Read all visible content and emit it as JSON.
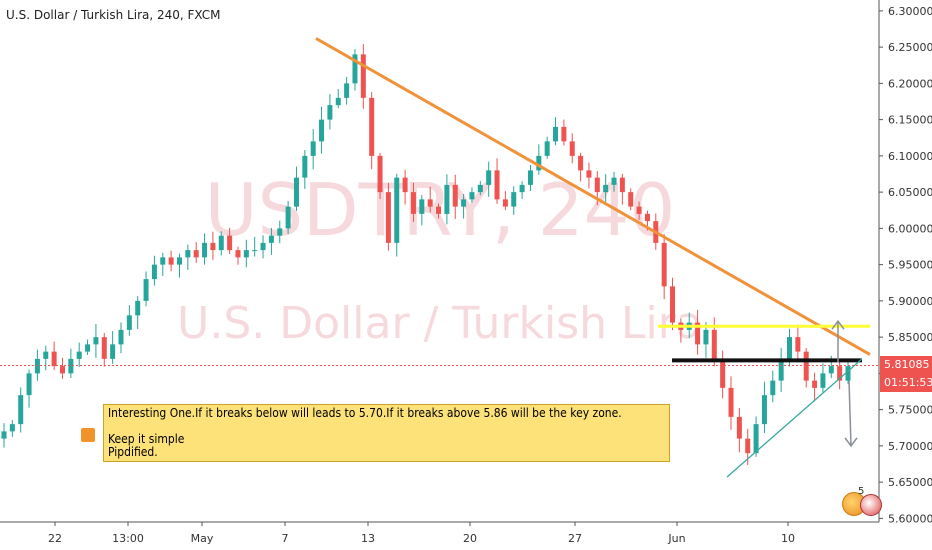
{
  "title": "U.S. Dollar / Turkish Lira, 240, FXCM",
  "watermark": {
    "line1": "USDTRY, 240",
    "line2": "U.S. Dollar / Turkish Lira"
  },
  "note": {
    "line1": "Interesting One.If it breaks below will leads to 5.70.If it breaks above 5.86 will be the key zone.",
    "line2": "Keep it simple",
    "line3": "Pipdified."
  },
  "price_tag": "5.81085",
  "timer_tag": "01:51:53",
  "badge_count": "5",
  "chart_data": {
    "type": "candlestick",
    "y_ticks": [
      "6.30000",
      "6.25000",
      "6.20000",
      "6.15000",
      "6.10000",
      "6.05000",
      "6.00000",
      "5.95000",
      "5.90000",
      "5.85000",
      "5.80000",
      "5.75000",
      "5.70000",
      "5.65000",
      "5.60000"
    ],
    "ylim": [
      5.595,
      6.315
    ],
    "x_tick_labels": [
      "22",
      "13:00",
      "May",
      "7",
      "13",
      "20",
      "27",
      "Jun",
      "10"
    ],
    "current_price": 5.81085,
    "trendlines": [
      {
        "name": "descending resistance",
        "color": "#f0923a",
        "from": [
          0.0,
          6.262
        ],
        "to": [
          1.0,
          5.826
        ]
      },
      {
        "name": "upper level",
        "color": "#ffff33",
        "from": [
          0.0,
          5.865
        ],
        "to": [
          1.0,
          5.865
        ]
      },
      {
        "name": "middle level",
        "color": "#111111",
        "from": [
          0.0,
          5.818
        ],
        "to": [
          1.0,
          5.818
        ]
      },
      {
        "name": "rising support",
        "color": "#3aa8a0",
        "from": [
          0.0,
          5.657
        ],
        "to": [
          1.0,
          5.82
        ]
      }
    ],
    "projections": [
      {
        "direction": "up",
        "from": 5.815,
        "to": 5.872
      },
      {
        "direction": "down",
        "from": 5.79,
        "to": 5.7
      }
    ],
    "close_path": [
      5.72,
      5.73,
      5.77,
      5.8,
      5.82,
      5.83,
      5.81,
      5.8,
      5.82,
      5.83,
      5.84,
      5.85,
      5.82,
      5.84,
      5.86,
      5.88,
      5.9,
      5.93,
      5.95,
      5.96,
      5.95,
      5.96,
      5.97,
      5.96,
      5.98,
      5.97,
      5.99,
      5.97,
      5.96,
      5.97,
      5.97,
      5.98,
      5.99,
      6.0,
      6.03,
      6.07,
      6.1,
      6.12,
      6.15,
      6.17,
      6.18,
      6.2,
      6.24,
      6.18,
      6.1,
      6.05,
      5.98,
      6.07,
      6.05,
      6.02,
      6.04,
      6.03,
      6.02,
      6.06,
      6.03,
      6.04,
      6.05,
      6.06,
      6.08,
      6.04,
      6.03,
      6.05,
      6.06,
      6.08,
      6.1,
      6.12,
      6.14,
      6.12,
      6.1,
      6.08,
      6.07,
      6.05,
      6.06,
      6.07,
      6.05,
      6.03,
      6.02,
      6.01,
      5.98,
      5.92,
      5.87,
      5.86,
      5.87,
      5.84,
      5.86,
      5.82,
      5.78,
      5.74,
      5.71,
      5.69,
      5.73,
      5.77,
      5.79,
      5.82,
      5.85,
      5.83,
      5.79,
      5.78,
      5.8,
      5.81,
      5.79,
      5.81
    ]
  },
  "colors": {
    "up": "#26a69a",
    "down": "#ef5350",
    "axis_text": "#333333",
    "grid": "#eceff2"
  }
}
